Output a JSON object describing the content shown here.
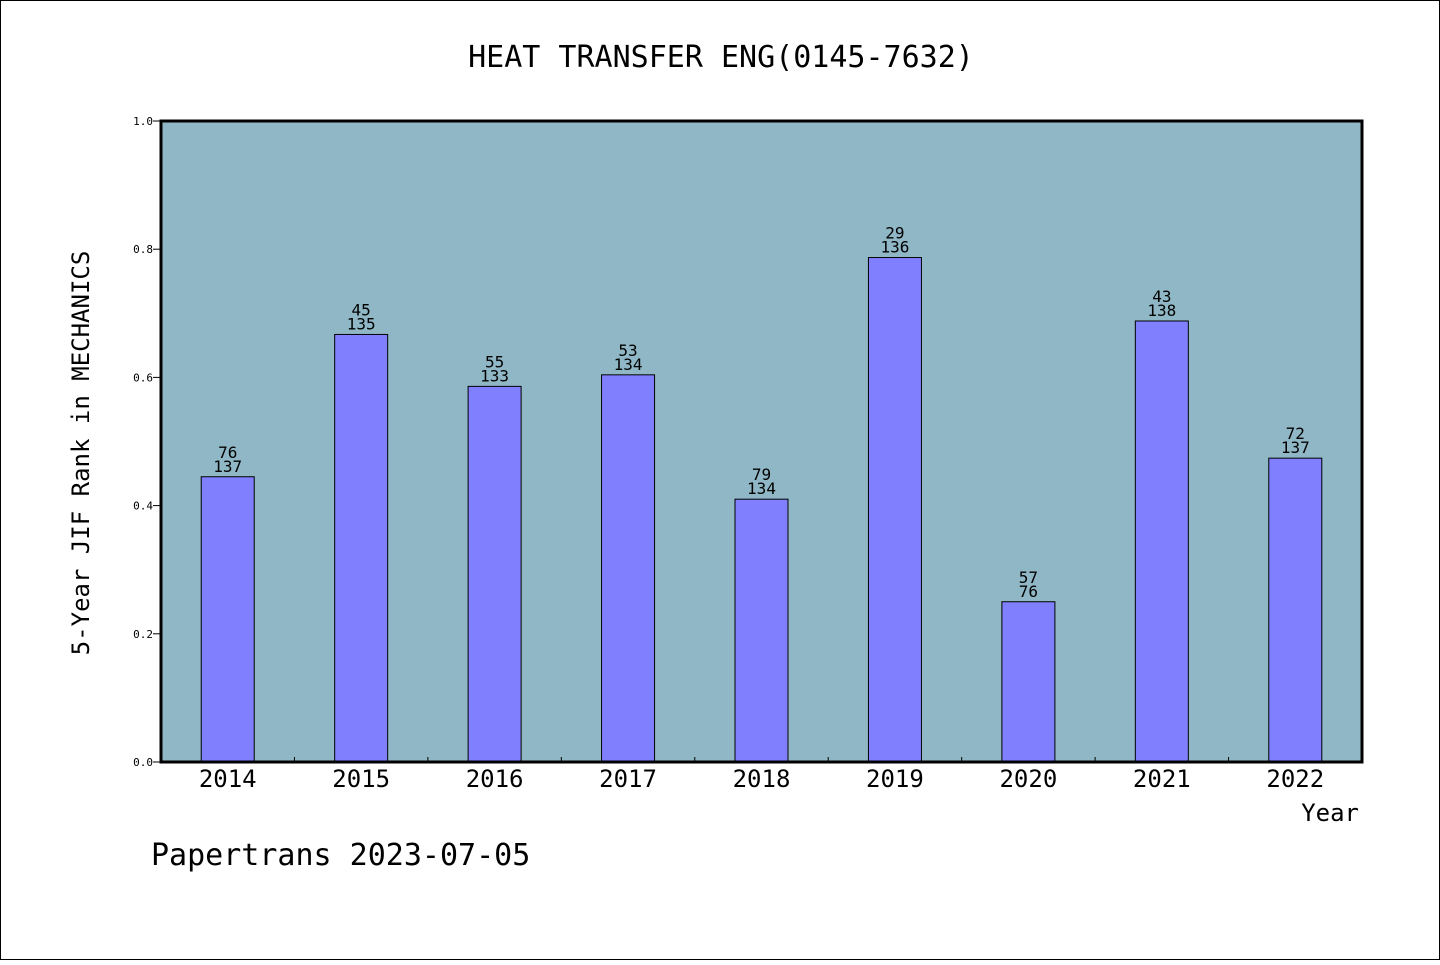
{
  "chart_data": {
    "type": "bar",
    "title": "HEAT TRANSFER ENG(0145-7632)",
    "xlabel": "Year",
    "ylabel": "5-Year JIF Rank in MECHANICS",
    "ylim": [
      0,
      1.0
    ],
    "yticks": [
      "0.0",
      "0.2",
      "0.4",
      "0.6",
      "0.8",
      "1.0"
    ],
    "categories": [
      "2014",
      "2015",
      "2016",
      "2017",
      "2018",
      "2019",
      "2020",
      "2021",
      "2022"
    ],
    "values": [
      0.445,
      0.667,
      0.586,
      0.604,
      0.41,
      0.787,
      0.25,
      0.688,
      0.474
    ],
    "annotations": [
      {
        "rank": "76",
        "total": "137"
      },
      {
        "rank": "45",
        "total": "135"
      },
      {
        "rank": "55",
        "total": "133"
      },
      {
        "rank": "53",
        "total": "134"
      },
      {
        "rank": "79",
        "total": "134"
      },
      {
        "rank": "29",
        "total": "136"
      },
      {
        "rank": "57",
        "total": "76"
      },
      {
        "rank": "43",
        "total": "138"
      },
      {
        "rank": "72",
        "total": "137"
      }
    ],
    "grid": false,
    "colors": {
      "plot_bg": "#8fb7c5",
      "bar": "#8080ff",
      "bar_edge": "#000000"
    }
  },
  "footer": "Papertrans 2023-07-05"
}
